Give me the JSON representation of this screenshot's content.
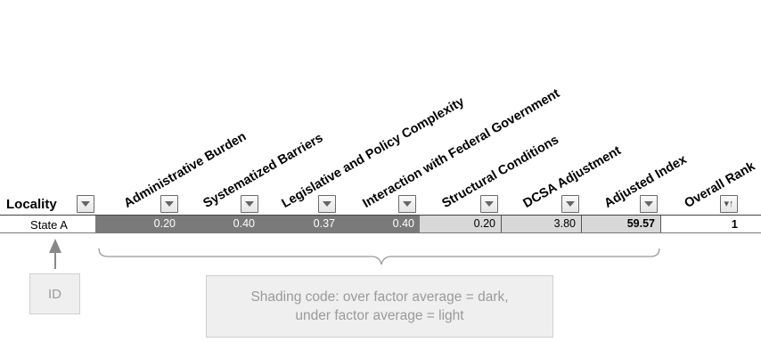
{
  "headers": {
    "locality": "Locality",
    "columns": [
      "Administrative Burden",
      "Systematized Barriers",
      "Legislative and Policy Complexity",
      "Interaction with Federal Government",
      "Structural Conditions",
      "DCSA Adjustment",
      "Adjusted Index",
      "Overall Rank"
    ]
  },
  "row": {
    "locality": "State A",
    "values": [
      "0.20",
      "0.40",
      "0.37",
      "0.40",
      "0.20",
      "3.80",
      "59.57"
    ],
    "rank": "1"
  },
  "icons": {
    "filter": "filter-dropdown-icon",
    "sort": "sort-ascending-icon",
    "arrow": "up-arrow-icon"
  },
  "colors": {
    "dark_shade": "#7a7a7a",
    "light_shade": "#d8d8d8"
  },
  "annotations": {
    "id_label": "ID",
    "shading_note_line1": "Shading code: over factor average = dark,",
    "shading_note_line2": "under factor average = light"
  }
}
